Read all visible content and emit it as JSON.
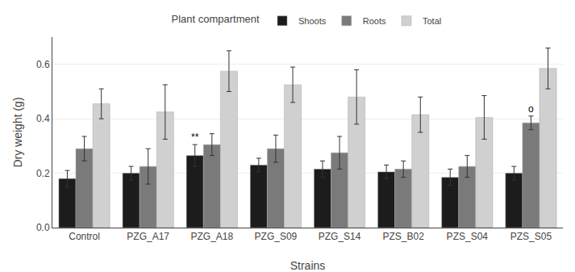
{
  "chart_data": {
    "type": "bar",
    "xlabel": "Strains",
    "ylabel": "Dry weight (g)",
    "categories": [
      "Control",
      "PZG_A17",
      "PZG_A18",
      "PZG_S09",
      "PZG_S14",
      "PZS_B02",
      "PZS_S04",
      "PZS_S05"
    ],
    "series": [
      {
        "name": "Shoots",
        "color": "#1c1c1c",
        "values": [
          0.18,
          0.2,
          0.265,
          0.23,
          0.215,
          0.205,
          0.185,
          0.2
        ],
        "errors": [
          0.03,
          0.025,
          0.04,
          0.025,
          0.03,
          0.025,
          0.03,
          0.025
        ]
      },
      {
        "name": "Roots",
        "color": "#7a7a7a",
        "values": [
          0.29,
          0.225,
          0.305,
          0.29,
          0.275,
          0.215,
          0.225,
          0.385
        ],
        "errors": [
          0.045,
          0.065,
          0.04,
          0.05,
          0.06,
          0.03,
          0.04,
          0.025
        ]
      },
      {
        "name": "Total",
        "color": "#d0d0d0",
        "values": [
          0.455,
          0.425,
          0.575,
          0.525,
          0.48,
          0.415,
          0.405,
          0.585
        ],
        "errors": [
          0.055,
          0.1,
          0.075,
          0.065,
          0.1,
          0.065,
          0.08,
          0.075
        ]
      }
    ],
    "legend_title": "Plant compartment",
    "legend": "top",
    "annotations": [
      {
        "text": "**",
        "category": "PZG_A18",
        "series": "Shoots"
      },
      {
        "text": "o",
        "category": "PZS_S05",
        "series": "Roots"
      }
    ],
    "ylim": [
      0.0,
      0.7
    ],
    "yticks": [
      {
        "value": 0.0,
        "label": "0.0"
      },
      0.2,
      0.4,
      0.6
    ],
    "grid": true
  }
}
